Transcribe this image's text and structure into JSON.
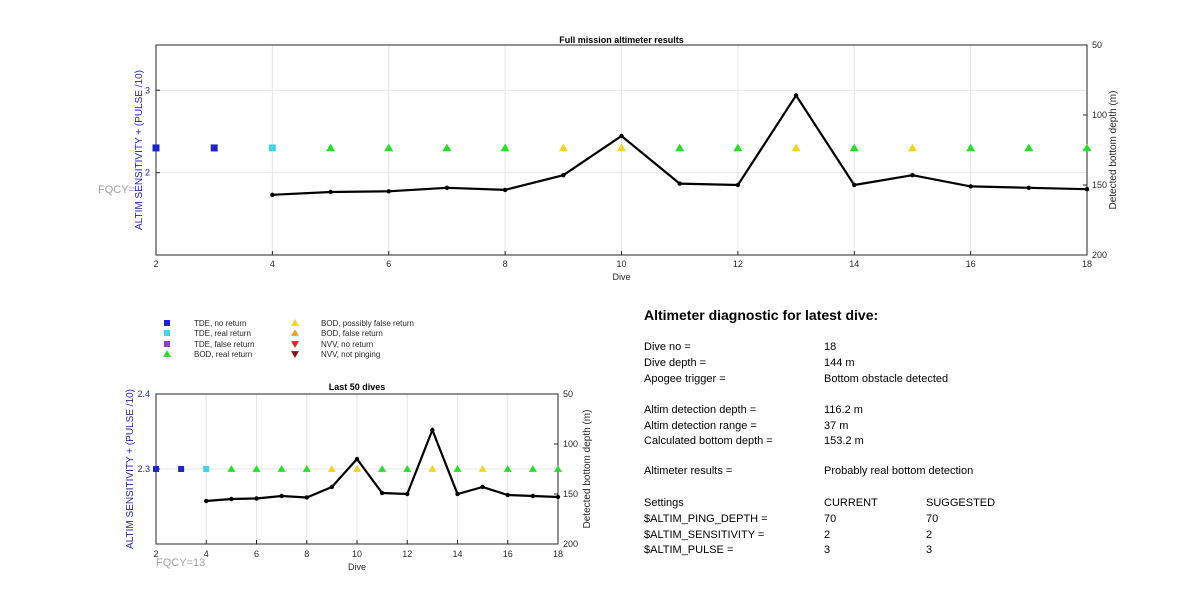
{
  "chart_data": [
    {
      "type": "line",
      "title": "Full mission altimeter results",
      "xlabel": "Dive",
      "ylabel_left": "ALTIM SENSITIVITY + (PULSE /10)",
      "ylabel_right": "Detected bottom depth (m)",
      "fqcy_label": "FQCY=",
      "xlim": [
        2,
        18
      ],
      "xticks": [
        2,
        4,
        6,
        8,
        10,
        12,
        14,
        16,
        18
      ],
      "ylim_left": [
        1,
        3.55
      ],
      "yticks_left": [
        2,
        3
      ],
      "ylim_right": [
        200,
        50
      ],
      "yticks_right": [
        50,
        100,
        150,
        200
      ],
      "grid": true,
      "markers": [
        {
          "x": 2,
          "y": 2.3,
          "type": "TDE, no return"
        },
        {
          "x": 3,
          "y": 2.3,
          "type": "TDE, no return"
        },
        {
          "x": 4,
          "y": 2.3,
          "type": "TDE, real return"
        },
        {
          "x": 5,
          "y": 2.3,
          "type": "BOD, real return"
        },
        {
          "x": 6,
          "y": 2.3,
          "type": "BOD, real return"
        },
        {
          "x": 7,
          "y": 2.3,
          "type": "BOD, real return"
        },
        {
          "x": 8,
          "y": 2.3,
          "type": "BOD, real return"
        },
        {
          "x": 9,
          "y": 2.3,
          "type": "BOD, possibly false return"
        },
        {
          "x": 10,
          "y": 2.3,
          "type": "BOD, possibly false return"
        },
        {
          "x": 11,
          "y": 2.3,
          "type": "BOD, real return"
        },
        {
          "x": 12,
          "y": 2.3,
          "type": "BOD, real return"
        },
        {
          "x": 13,
          "y": 2.3,
          "type": "BOD, possibly false return"
        },
        {
          "x": 14,
          "y": 2.3,
          "type": "BOD, real return"
        },
        {
          "x": 15,
          "y": 2.3,
          "type": "BOD, possibly false return"
        },
        {
          "x": 16,
          "y": 2.3,
          "type": "BOD, real return"
        },
        {
          "x": 17,
          "y": 2.3,
          "type": "BOD, real return"
        },
        {
          "x": 18,
          "y": 2.3,
          "type": "BOD, real return"
        }
      ],
      "depth_series": {
        "x": [
          4,
          5,
          6,
          7,
          8,
          9,
          10,
          11,
          12,
          13,
          14,
          15,
          16,
          17,
          18
        ],
        "y": [
          157,
          155,
          154.5,
          152,
          153.5,
          143,
          115,
          149,
          150,
          86,
          150,
          143,
          151,
          152,
          153
        ]
      }
    },
    {
      "type": "line",
      "title": "Last 50 dives",
      "xlabel": "Dive",
      "ylabel_left": "ALTIM SENSITIVITY + (PULSE /10)",
      "ylabel_right": "Detected bottom depth (m)",
      "fqcy_label": "FQCY=13",
      "xlim": [
        2,
        18
      ],
      "xticks": [
        2,
        4,
        6,
        8,
        10,
        12,
        14,
        16,
        18
      ],
      "ylim_left": [
        2.2,
        2.4
      ],
      "yticks_left": [
        2.3,
        2.4
      ],
      "ylim_right": [
        200,
        50
      ],
      "yticks_right": [
        50,
        100,
        150,
        200
      ],
      "grid": true,
      "markers": [
        {
          "x": 2,
          "y": 2.3,
          "type": "TDE, no return"
        },
        {
          "x": 3,
          "y": 2.3,
          "type": "TDE, no return"
        },
        {
          "x": 4,
          "y": 2.3,
          "type": "TDE, real return"
        },
        {
          "x": 5,
          "y": 2.3,
          "type": "BOD, real return"
        },
        {
          "x": 6,
          "y": 2.3,
          "type": "BOD, real return"
        },
        {
          "x": 7,
          "y": 2.3,
          "type": "BOD, real return"
        },
        {
          "x": 8,
          "y": 2.3,
          "type": "BOD, real return"
        },
        {
          "x": 9,
          "y": 2.3,
          "type": "BOD, possibly false return"
        },
        {
          "x": 10,
          "y": 2.3,
          "type": "BOD, possibly false return"
        },
        {
          "x": 11,
          "y": 2.3,
          "type": "BOD, real return"
        },
        {
          "x": 12,
          "y": 2.3,
          "type": "BOD, real return"
        },
        {
          "x": 13,
          "y": 2.3,
          "type": "BOD, possibly false return"
        },
        {
          "x": 14,
          "y": 2.3,
          "type": "BOD, real return"
        },
        {
          "x": 15,
          "y": 2.3,
          "type": "BOD, possibly false return"
        },
        {
          "x": 16,
          "y": 2.3,
          "type": "BOD, real return"
        },
        {
          "x": 17,
          "y": 2.3,
          "type": "BOD, real return"
        },
        {
          "x": 18,
          "y": 2.3,
          "type": "BOD, real return"
        }
      ],
      "depth_series": {
        "x": [
          4,
          5,
          6,
          7,
          8,
          9,
          10,
          11,
          12,
          13,
          14,
          15,
          16,
          17,
          18
        ],
        "y": [
          157,
          155,
          154.5,
          152,
          153.5,
          143,
          115,
          149,
          150,
          86,
          150,
          143,
          151,
          152,
          153
        ]
      }
    }
  ],
  "legend": [
    {
      "label": "TDE, no return",
      "shape": "square",
      "color": "#1f22cf"
    },
    {
      "label": "TDE, real return",
      "shape": "square",
      "color": "#3cd6ea"
    },
    {
      "label": "TDE, false return",
      "shape": "square",
      "color": "#8e3fcc"
    },
    {
      "label": "BOD, real return",
      "shape": "triangle-up",
      "color": "#22e022"
    },
    {
      "label": "BOD, possibly false return",
      "shape": "triangle-up",
      "color": "#f5d31a"
    },
    {
      "label": "BOD, false return",
      "shape": "triangle-up",
      "color": "#f2a21e"
    },
    {
      "label": "NVV, no return",
      "shape": "triangle-down",
      "color": "#e2261c"
    },
    {
      "label": "NVV, not pinging",
      "shape": "triangle-down",
      "color": "#8a1212"
    }
  ],
  "diagnostic": {
    "title": "Altimeter diagnostic for latest dive:",
    "rows": [
      {
        "label": "Dive no =",
        "value": "18"
      },
      {
        "label": "Dive depth =",
        "value": "144 m"
      },
      {
        "label": "Apogee trigger =",
        "value": "Bottom obstacle detected"
      },
      {
        "label": "Altim detection depth =",
        "value": "116.2 m"
      },
      {
        "label": "Altim detection range =",
        "value": "37 m"
      },
      {
        "label": "Calculated bottom depth =",
        "value": "153.2 m"
      },
      {
        "label": "Altimeter results =",
        "value": "Probably real bottom detection"
      }
    ],
    "settings": {
      "header": [
        "Settings",
        "CURRENT",
        "SUGGESTED"
      ],
      "rows": [
        [
          "$ALTIM_PING_DEPTH =",
          "70",
          "70"
        ],
        [
          "$ALTIM_SENSITIVITY =",
          "2",
          "2"
        ],
        [
          "$ALTIM_PULSE =",
          "3",
          "3"
        ]
      ]
    }
  }
}
